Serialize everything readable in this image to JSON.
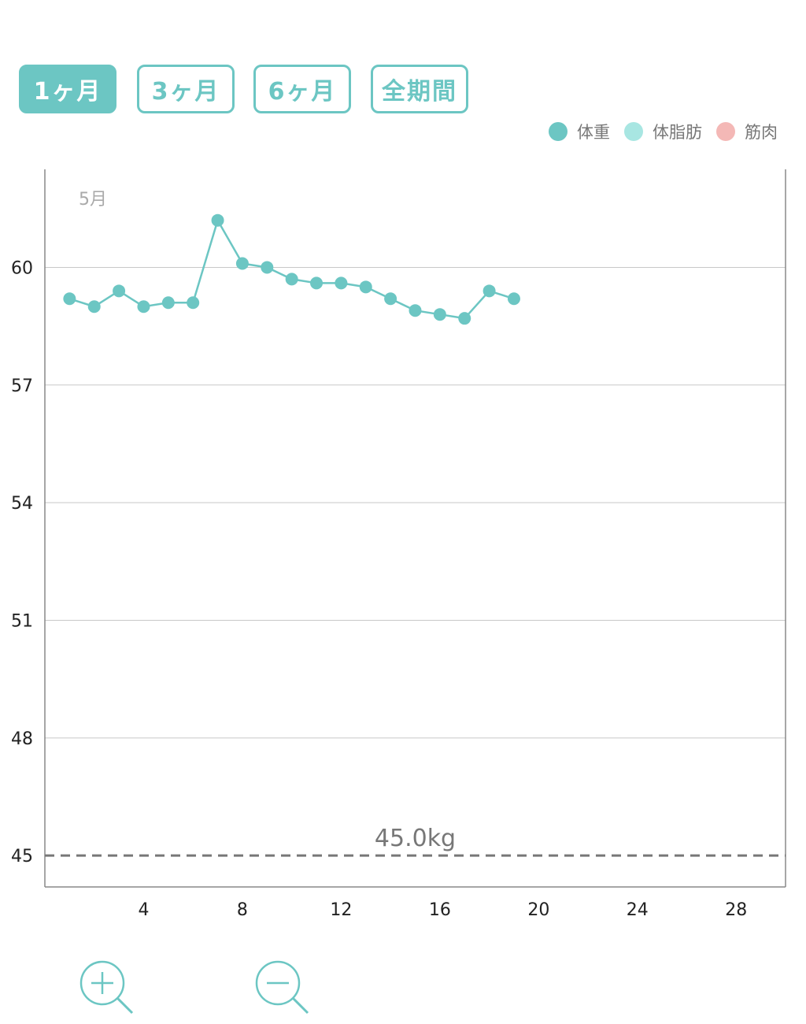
{
  "tabs": [
    {
      "label": "1ヶ月",
      "active": true
    },
    {
      "label": "3ヶ月",
      "active": false
    },
    {
      "label": "6ヶ月",
      "active": false
    },
    {
      "label": "全期間",
      "active": false
    }
  ],
  "legend": [
    {
      "label": "体重",
      "color": "#6cc6c3"
    },
    {
      "label": "体脂肪",
      "color": "#a8e6e2"
    },
    {
      "label": "筋肉",
      "color": "#f4b8b6"
    }
  ],
  "zoom": {
    "in_icon": "zoom-in-icon",
    "out_icon": "zoom-out-icon"
  },
  "chart_data": {
    "type": "line",
    "month_label": "5月",
    "xlim": [
      0,
      30
    ],
    "ylim": [
      44.2,
      62.5
    ],
    "x_ticks": [
      4,
      8,
      12,
      16,
      20,
      24,
      28
    ],
    "y_ticks": [
      45,
      48,
      51,
      54,
      57,
      60
    ],
    "grid": true,
    "series": [
      {
        "name": "体重",
        "color": "#6cc6c3",
        "x": [
          1,
          2,
          3,
          4,
          5,
          6,
          7,
          8,
          9,
          10,
          11,
          12,
          13,
          14,
          15,
          16,
          17,
          18,
          19
        ],
        "y": [
          59.2,
          59.0,
          59.4,
          59.0,
          59.1,
          59.1,
          61.2,
          60.1,
          60.0,
          59.7,
          59.6,
          59.6,
          59.5,
          59.2,
          58.9,
          58.8,
          58.7,
          59.4,
          59.2
        ]
      }
    ],
    "target": {
      "value": 45.0,
      "label": "45.0kg"
    }
  }
}
